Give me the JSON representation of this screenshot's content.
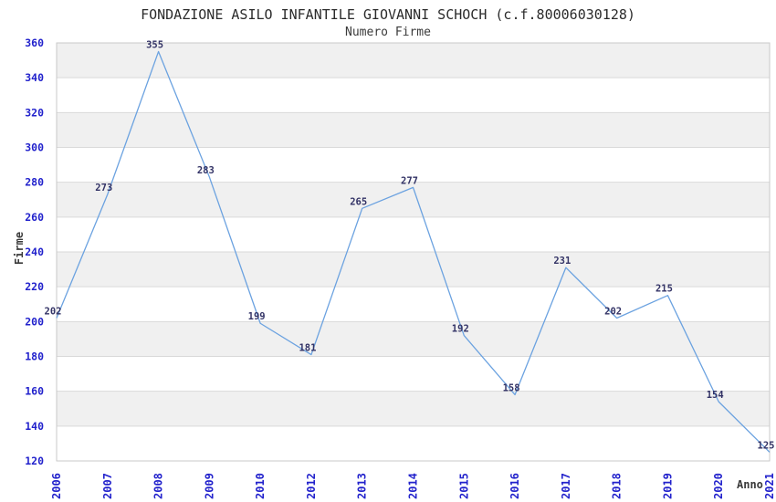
{
  "title": "FONDAZIONE ASILO INFANTILE GIOVANNI SCHOCH (c.f.80006030128)",
  "subtitle": "Numero Firme",
  "colors": {
    "line": "#6ba2e0",
    "tick_label": "#2222cc",
    "value_label": "#333366",
    "band_fill": "#f0f0f0",
    "grid_line": "#d9d9d9",
    "plot_border": "#c9c9c9",
    "title_text": "#2b2b2b",
    "axis_title_text": "#3a3a3a",
    "background": "#ffffff"
  },
  "chart_data": {
    "type": "line",
    "title": "FONDAZIONE ASILO INFANTILE GIOVANNI SCHOCH (c.f.80006030128)",
    "subtitle": "Numero Firme",
    "xlabel": "Anno",
    "ylabel": "Firme",
    "categories": [
      "2006",
      "2007",
      "2008",
      "2009",
      "2010",
      "2012",
      "2013",
      "2014",
      "2015",
      "2016",
      "2017",
      "2018",
      "2019",
      "2020",
      "2021"
    ],
    "values": [
      202,
      273,
      355,
      283,
      199,
      181,
      265,
      277,
      192,
      158,
      231,
      202,
      215,
      154,
      125
    ],
    "ylim": [
      120,
      360
    ],
    "ytick_step": 20,
    "yticks": [
      120,
      140,
      160,
      180,
      200,
      220,
      240,
      260,
      280,
      300,
      320,
      340,
      360
    ],
    "grid": true,
    "alternating_bands": true,
    "legend_position": "none",
    "data_labels_visible": true
  }
}
